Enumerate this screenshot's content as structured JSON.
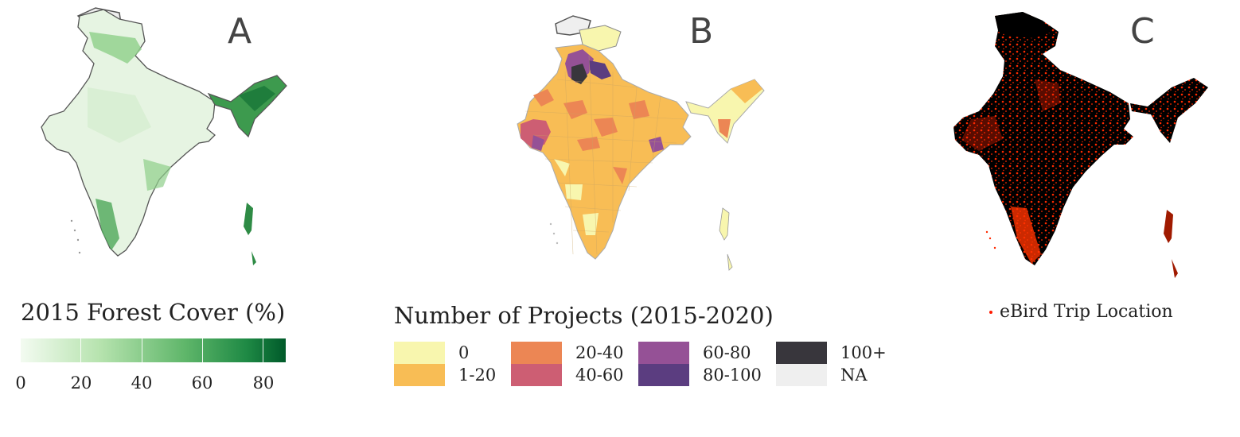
{
  "panels": {
    "a": {
      "letter": "A",
      "legend_title": "2015 Forest Cover (%)",
      "legend_ticks": [
        "0",
        "20",
        "40",
        "60",
        "80"
      ],
      "color_low": "#f3fbf1",
      "color_high": "#005a2a"
    },
    "b": {
      "letter": "B",
      "legend_title": "Number of Projects (2015-2020)",
      "legend_items": [
        {
          "label": "0",
          "color": "#f8f6ae"
        },
        {
          "label": "1-20",
          "color": "#f8bd55"
        },
        {
          "label": "20-40",
          "color": "#ec8654"
        },
        {
          "label": "40-60",
          "color": "#cd5e73"
        },
        {
          "label": "60-80",
          "color": "#955196"
        },
        {
          "label": "80-100",
          "color": "#5b3d80"
        },
        {
          "label": "100+",
          "color": "#38363c"
        },
        {
          "label": "NA",
          "color": "#efefef"
        }
      ]
    },
    "c": {
      "letter": "C",
      "legend_label": "eBird Trip Location",
      "point_color": "#ff1a00"
    }
  }
}
